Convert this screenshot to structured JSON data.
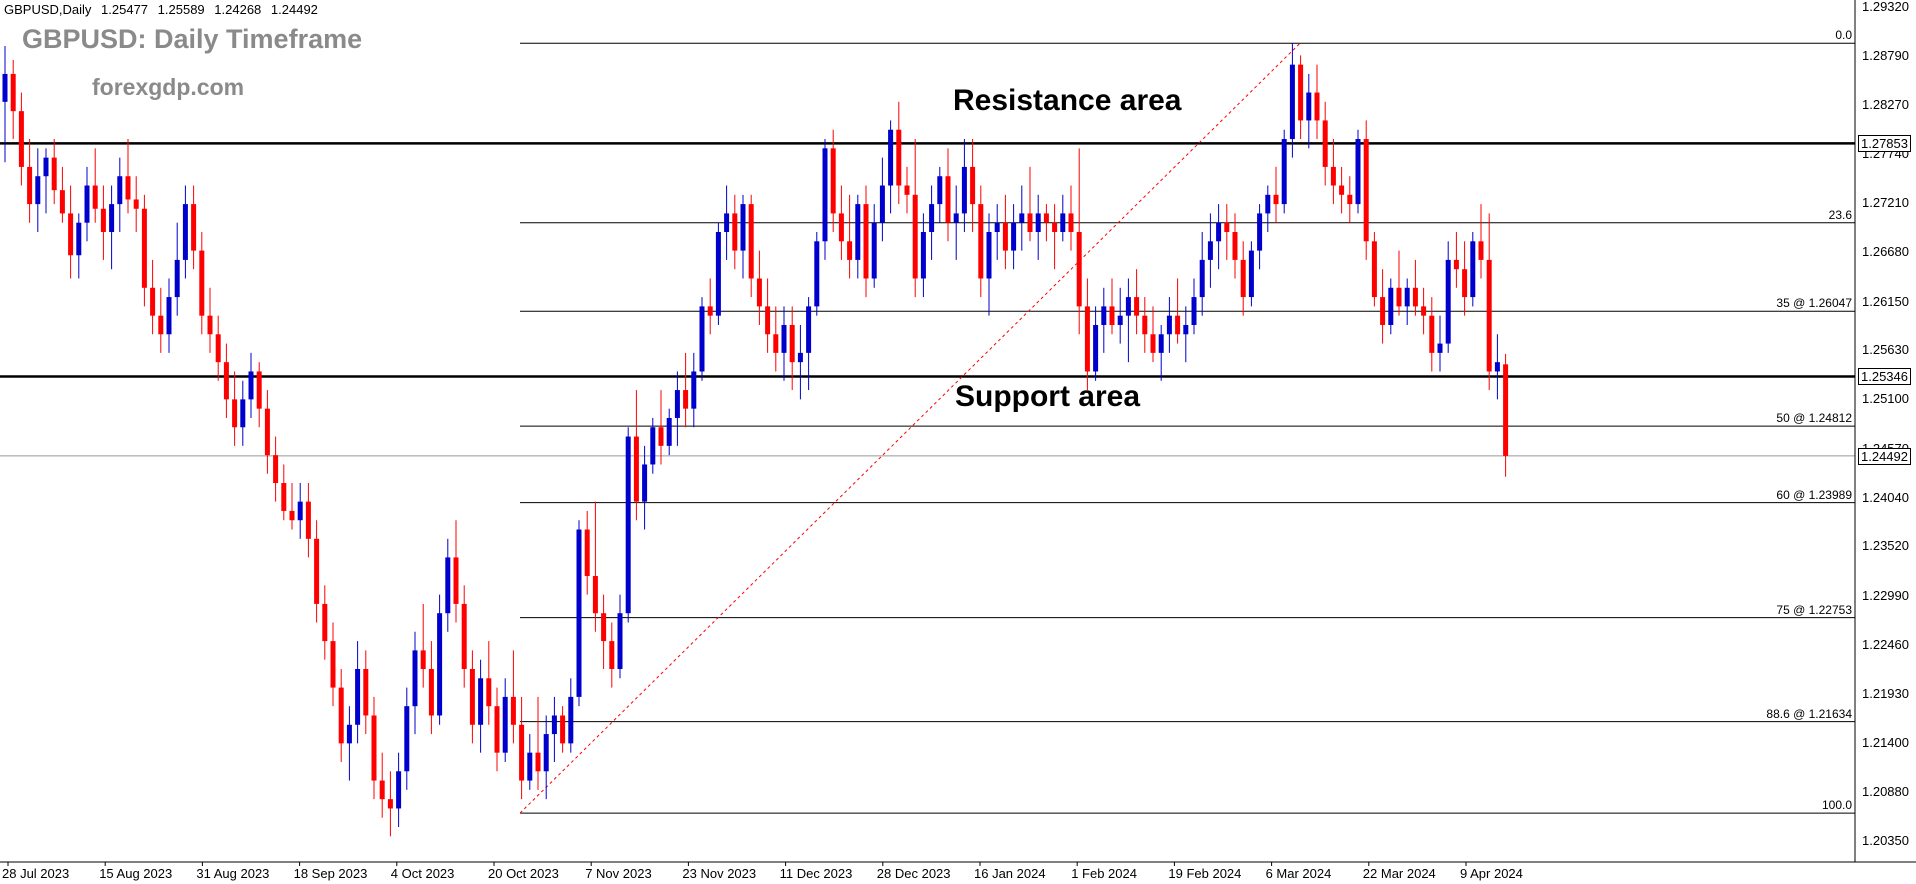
{
  "header": {
    "symbol": "GBPUSD,Daily",
    "open": "1.25477",
    "high": "1.25589",
    "low": "1.24268",
    "close": "1.24492"
  },
  "title": "GBPUSD: Daily Timeframe",
  "brand": "forexgdp.com",
  "annotations": {
    "resistance_label": "Resistance area",
    "support_label": "Support area"
  },
  "colors": {
    "bull": "#0000cc",
    "bear": "#ff0000",
    "levels": "#000000",
    "fib_diagonal": "#ff0000",
    "background": "#ffffff"
  },
  "chart_data": {
    "type": "candlestick",
    "instrument": "GBPUSD",
    "timeframe": "Daily",
    "ylim": [
      1.2025,
      1.2935
    ],
    "y_ticks": [
      "1.29320",
      "1.28790",
      "1.28270",
      "1.27740",
      "1.27210",
      "1.26680",
      "1.26150",
      "1.25630",
      "1.25100",
      "1.24570",
      "1.24040",
      "1.23520",
      "1.22990",
      "1.22460",
      "1.21930",
      "1.21400",
      "1.20880",
      "1.20350"
    ],
    "x_ticks": [
      "28 Jul 2023",
      "15 Aug 2023",
      "31 Aug 2023",
      "18 Sep 2023",
      "4 Oct 2023",
      "20 Oct 2023",
      "7 Nov 2023",
      "23 Nov 2023",
      "11 Dec 2023",
      "28 Dec 2023",
      "16 Jan 2024",
      "1 Feb 2024",
      "19 Feb 2024",
      "6 Mar 2024",
      "22 Mar 2024",
      "9 Apr 2024"
    ],
    "horizontal_levels": [
      {
        "label": "resistance",
        "price": "1.27853"
      },
      {
        "label": "support",
        "price": "1.25346"
      },
      {
        "label": "current",
        "price": "1.24492"
      }
    ],
    "fibonacci": {
      "swing_low": 1.2065,
      "swing_high": 1.2893,
      "levels": [
        {
          "label": "0.0",
          "price": 1.2893
        },
        {
          "label": "23.6",
          "price": 1.27
        },
        {
          "label": "35  @ 1.26047",
          "price": 1.26047
        },
        {
          "label": "50  @ 1.24812",
          "price": 1.24812
        },
        {
          "label": "60  @ 1.23989",
          "price": 1.23989
        },
        {
          "label": "75  @ 1.22753",
          "price": 1.22753
        },
        {
          "label": "88.6 @ 1.21634",
          "price": 1.21634
        },
        {
          "label": "100.0",
          "price": 1.2065
        }
      ]
    },
    "candles": [
      [
        1.283,
        1.289,
        1.2765,
        1.286
      ],
      [
        1.286,
        1.2875,
        1.279,
        1.282
      ],
      [
        1.282,
        1.284,
        1.274,
        1.276
      ],
      [
        1.276,
        1.279,
        1.27,
        1.272
      ],
      [
        1.272,
        1.278,
        1.269,
        1.275
      ],
      [
        1.275,
        1.278,
        1.271,
        1.277
      ],
      [
        1.277,
        1.279,
        1.272,
        1.2735
      ],
      [
        1.2735,
        1.276,
        1.27,
        1.271
      ],
      [
        1.271,
        1.274,
        1.264,
        1.2665
      ],
      [
        1.2665,
        1.271,
        1.264,
        1.27
      ],
      [
        1.27,
        1.276,
        1.268,
        1.274
      ],
      [
        1.274,
        1.278,
        1.27,
        1.2715
      ],
      [
        1.2715,
        1.274,
        1.266,
        1.269
      ],
      [
        1.269,
        1.274,
        1.265,
        1.272
      ],
      [
        1.272,
        1.277,
        1.269,
        1.275
      ],
      [
        1.275,
        1.279,
        1.271,
        1.2725
      ],
      [
        1.2725,
        1.275,
        1.269,
        1.2715
      ],
      [
        1.2715,
        1.273,
        1.261,
        1.263
      ],
      [
        1.263,
        1.266,
        1.258,
        1.26
      ],
      [
        1.26,
        1.263,
        1.256,
        1.258
      ],
      [
        1.258,
        1.264,
        1.256,
        1.262
      ],
      [
        1.262,
        1.27,
        1.26,
        1.266
      ],
      [
        1.266,
        1.274,
        1.264,
        1.272
      ],
      [
        1.272,
        1.274,
        1.265,
        1.267
      ],
      [
        1.267,
        1.269,
        1.258,
        1.26
      ],
      [
        1.26,
        1.263,
        1.256,
        1.258
      ],
      [
        1.258,
        1.26,
        1.253,
        1.255
      ],
      [
        1.255,
        1.257,
        1.249,
        1.251
      ],
      [
        1.251,
        1.254,
        1.246,
        1.248
      ],
      [
        1.248,
        1.253,
        1.246,
        1.251
      ],
      [
        1.251,
        1.256,
        1.249,
        1.254
      ],
      [
        1.254,
        1.255,
        1.248,
        1.25
      ],
      [
        1.25,
        1.252,
        1.243,
        1.245
      ],
      [
        1.245,
        1.247,
        1.24,
        1.242
      ],
      [
        1.242,
        1.244,
        1.238,
        1.239
      ],
      [
        1.239,
        1.242,
        1.237,
        1.238
      ],
      [
        1.238,
        1.242,
        1.236,
        1.24
      ],
      [
        1.24,
        1.242,
        1.234,
        1.236
      ],
      [
        1.236,
        1.238,
        1.227,
        1.229
      ],
      [
        1.229,
        1.231,
        1.223,
        1.225
      ],
      [
        1.225,
        1.227,
        1.218,
        1.22
      ],
      [
        1.22,
        1.222,
        1.212,
        1.214
      ],
      [
        1.214,
        1.218,
        1.21,
        1.216
      ],
      [
        1.216,
        1.225,
        1.214,
        1.222
      ],
      [
        1.222,
        1.224,
        1.215,
        1.217
      ],
      [
        1.217,
        1.219,
        1.208,
        1.21
      ],
      [
        1.21,
        1.213,
        1.206,
        1.208
      ],
      [
        1.208,
        1.211,
        1.204,
        1.207
      ],
      [
        1.207,
        1.213,
        1.205,
        1.211
      ],
      [
        1.211,
        1.22,
        1.209,
        1.218
      ],
      [
        1.218,
        1.226,
        1.215,
        1.224
      ],
      [
        1.224,
        1.229,
        1.22,
        1.222
      ],
      [
        1.222,
        1.225,
        1.215,
        1.217
      ],
      [
        1.217,
        1.23,
        1.216,
        1.228
      ],
      [
        1.228,
        1.236,
        1.226,
        1.234
      ],
      [
        1.234,
        1.238,
        1.227,
        1.229
      ],
      [
        1.229,
        1.231,
        1.22,
        1.222
      ],
      [
        1.222,
        1.224,
        1.214,
        1.216
      ],
      [
        1.216,
        1.223,
        1.213,
        1.221
      ],
      [
        1.221,
        1.225,
        1.216,
        1.218
      ],
      [
        1.218,
        1.22,
        1.211,
        1.213
      ],
      [
        1.213,
        1.221,
        1.212,
        1.219
      ],
      [
        1.219,
        1.224,
        1.214,
        1.216
      ],
      [
        1.216,
        1.219,
        1.208,
        1.21
      ],
      [
        1.21,
        1.215,
        1.209,
        1.213
      ],
      [
        1.213,
        1.219,
        1.209,
        1.211
      ],
      [
        1.211,
        1.217,
        1.208,
        1.215
      ],
      [
        1.215,
        1.219,
        1.212,
        1.217
      ],
      [
        1.217,
        1.218,
        1.213,
        1.214
      ],
      [
        1.214,
        1.221,
        1.213,
        1.219
      ],
      [
        1.219,
        1.238,
        1.218,
        1.237
      ],
      [
        1.237,
        1.239,
        1.23,
        1.232
      ],
      [
        1.232,
        1.24,
        1.226,
        1.228
      ],
      [
        1.228,
        1.23,
        1.222,
        1.225
      ],
      [
        1.225,
        1.227,
        1.22,
        1.222
      ],
      [
        1.222,
        1.23,
        1.221,
        1.228
      ],
      [
        1.228,
        1.248,
        1.227,
        1.247
      ],
      [
        1.247,
        1.252,
        1.238,
        1.24
      ],
      [
        1.24,
        1.246,
        1.237,
        1.244
      ],
      [
        1.244,
        1.249,
        1.243,
        1.248
      ],
      [
        1.248,
        1.252,
        1.244,
        1.246
      ],
      [
        1.246,
        1.25,
        1.245,
        1.249
      ],
      [
        1.249,
        1.254,
        1.246,
        1.252
      ],
      [
        1.252,
        1.256,
        1.248,
        1.25
      ],
      [
        1.25,
        1.256,
        1.248,
        1.254
      ],
      [
        1.254,
        1.262,
        1.253,
        1.261
      ],
      [
        1.261,
        1.264,
        1.258,
        1.26
      ],
      [
        1.26,
        1.27,
        1.259,
        1.269
      ],
      [
        1.269,
        1.274,
        1.266,
        1.271
      ],
      [
        1.271,
        1.273,
        1.265,
        1.267
      ],
      [
        1.267,
        1.273,
        1.264,
        1.272
      ],
      [
        1.272,
        1.273,
        1.262,
        1.264
      ],
      [
        1.264,
        1.267,
        1.259,
        1.261
      ],
      [
        1.261,
        1.264,
        1.256,
        1.258
      ],
      [
        1.258,
        1.261,
        1.254,
        1.256
      ],
      [
        1.256,
        1.261,
        1.253,
        1.259
      ],
      [
        1.259,
        1.261,
        1.252,
        1.255
      ],
      [
        1.255,
        1.259,
        1.251,
        1.256
      ],
      [
        1.256,
        1.262,
        1.252,
        1.261
      ],
      [
        1.261,
        1.269,
        1.26,
        1.268
      ],
      [
        1.268,
        1.279,
        1.266,
        1.278
      ],
      [
        1.278,
        1.28,
        1.269,
        1.271
      ],
      [
        1.271,
        1.274,
        1.266,
        1.268
      ],
      [
        1.268,
        1.273,
        1.264,
        1.266
      ],
      [
        1.266,
        1.273,
        1.264,
        1.272
      ],
      [
        1.272,
        1.274,
        1.262,
        1.264
      ],
      [
        1.264,
        1.272,
        1.263,
        1.27
      ],
      [
        1.27,
        1.277,
        1.268,
        1.274
      ],
      [
        1.274,
        1.281,
        1.271,
        1.28
      ],
      [
        1.28,
        1.283,
        1.272,
        1.274
      ],
      [
        1.274,
        1.276,
        1.271,
        1.273
      ],
      [
        1.273,
        1.279,
        1.262,
        1.264
      ],
      [
        1.264,
        1.271,
        1.262,
        1.269
      ],
      [
        1.269,
        1.274,
        1.266,
        1.272
      ],
      [
        1.272,
        1.276,
        1.27,
        1.275
      ],
      [
        1.275,
        1.278,
        1.268,
        1.27
      ],
      [
        1.27,
        1.274,
        1.266,
        1.271
      ],
      [
        1.271,
        1.279,
        1.269,
        1.276
      ],
      [
        1.276,
        1.279,
        1.269,
        1.272
      ],
      [
        1.272,
        1.274,
        1.262,
        1.264
      ],
      [
        1.264,
        1.271,
        1.26,
        1.269
      ],
      [
        1.269,
        1.272,
        1.266,
        1.27
      ],
      [
        1.27,
        1.273,
        1.265,
        1.267
      ],
      [
        1.267,
        1.272,
        1.265,
        1.27
      ],
      [
        1.27,
        1.274,
        1.267,
        1.271
      ],
      [
        1.271,
        1.276,
        1.268,
        1.269
      ],
      [
        1.269,
        1.273,
        1.266,
        1.271
      ],
      [
        1.271,
        1.272,
        1.268,
        1.27
      ],
      [
        1.27,
        1.272,
        1.265,
        1.269
      ],
      [
        1.269,
        1.273,
        1.268,
        1.271
      ],
      [
        1.271,
        1.274,
        1.267,
        1.269
      ],
      [
        1.269,
        1.278,
        1.258,
        1.261
      ],
      [
        1.261,
        1.264,
        1.252,
        1.254
      ],
      [
        1.254,
        1.261,
        1.253,
        1.259
      ],
      [
        1.259,
        1.263,
        1.256,
        1.261
      ],
      [
        1.261,
        1.264,
        1.258,
        1.259
      ],
      [
        1.259,
        1.263,
        1.257,
        1.26
      ],
      [
        1.26,
        1.264,
        1.255,
        1.262
      ],
      [
        1.262,
        1.265,
        1.258,
        1.26
      ],
      [
        1.26,
        1.262,
        1.256,
        1.258
      ],
      [
        1.258,
        1.261,
        1.255,
        1.256
      ],
      [
        1.256,
        1.259,
        1.253,
        1.258
      ],
      [
        1.258,
        1.262,
        1.256,
        1.26
      ],
      [
        1.26,
        1.264,
        1.257,
        1.258
      ],
      [
        1.258,
        1.261,
        1.255,
        1.259
      ],
      [
        1.259,
        1.264,
        1.258,
        1.262
      ],
      [
        1.262,
        1.269,
        1.26,
        1.266
      ],
      [
        1.266,
        1.271,
        1.263,
        1.268
      ],
      [
        1.268,
        1.272,
        1.265,
        1.27
      ],
      [
        1.27,
        1.272,
        1.266,
        1.269
      ],
      [
        1.269,
        1.271,
        1.264,
        1.266
      ],
      [
        1.266,
        1.268,
        1.26,
        1.262
      ],
      [
        1.262,
        1.268,
        1.261,
        1.267
      ],
      [
        1.267,
        1.272,
        1.265,
        1.271
      ],
      [
        1.271,
        1.274,
        1.269,
        1.273
      ],
      [
        1.273,
        1.276,
        1.27,
        1.272
      ],
      [
        1.272,
        1.28,
        1.271,
        1.279
      ],
      [
        1.279,
        1.2893,
        1.277,
        1.287
      ],
      [
        1.287,
        1.288,
        1.279,
        1.281
      ],
      [
        1.281,
        1.286,
        1.278,
        1.284
      ],
      [
        1.284,
        1.287,
        1.279,
        1.281
      ],
      [
        1.281,
        1.283,
        1.274,
        1.276
      ],
      [
        1.276,
        1.279,
        1.272,
        1.274
      ],
      [
        1.274,
        1.276,
        1.271,
        1.273
      ],
      [
        1.273,
        1.275,
        1.27,
        1.272
      ],
      [
        1.272,
        1.28,
        1.271,
        1.279
      ],
      [
        1.279,
        1.281,
        1.266,
        1.268
      ],
      [
        1.268,
        1.269,
        1.261,
        1.262
      ],
      [
        1.262,
        1.265,
        1.257,
        1.259
      ],
      [
        1.259,
        1.264,
        1.258,
        1.263
      ],
      [
        1.263,
        1.267,
        1.26,
        1.261
      ],
      [
        1.261,
        1.264,
        1.259,
        1.263
      ],
      [
        1.263,
        1.266,
        1.26,
        1.261
      ],
      [
        1.261,
        1.263,
        1.258,
        1.26
      ],
      [
        1.26,
        1.262,
        1.254,
        1.256
      ],
      [
        1.256,
        1.26,
        1.254,
        1.257
      ],
      [
        1.257,
        1.268,
        1.256,
        1.266
      ],
      [
        1.266,
        1.269,
        1.263,
        1.265
      ],
      [
        1.265,
        1.268,
        1.26,
        1.262
      ],
      [
        1.262,
        1.269,
        1.261,
        1.268
      ],
      [
        1.268,
        1.272,
        1.264,
        1.266
      ],
      [
        1.266,
        1.271,
        1.252,
        1.254
      ],
      [
        1.254,
        1.258,
        1.251,
        1.255
      ],
      [
        1.25477,
        1.25589,
        1.24268,
        1.24492
      ]
    ]
  }
}
